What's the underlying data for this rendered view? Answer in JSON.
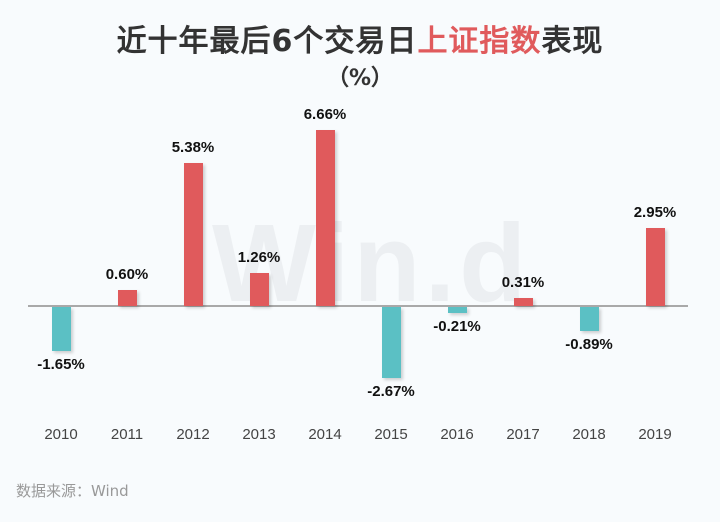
{
  "title": {
    "part1": "近十年最后6个交易日",
    "highlight": "上证指数",
    "part2": "表现",
    "highlight_color": "#E05A5C"
  },
  "subtitle": "（%）",
  "watermark": "Win.d",
  "source": "数据来源：Wind",
  "colors": {
    "positive": "#E05A5C",
    "negative": "#5BC0C4",
    "baseline": "#A9A9A9",
    "background": "#F8FBFD"
  },
  "chart_data": {
    "type": "bar",
    "title": "近十年最后6个交易日上证指数表现（%）",
    "xlabel": "",
    "ylabel": "%",
    "categories": [
      "2010",
      "2011",
      "2012",
      "2013",
      "2014",
      "2015",
      "2016",
      "2017",
      "2018",
      "2019"
    ],
    "values": [
      -1.65,
      0.6,
      5.38,
      1.26,
      6.66,
      -2.67,
      -0.21,
      0.31,
      -0.89,
      2.95
    ],
    "labels": [
      "-1.65%",
      "0.60%",
      "5.38%",
      "1.26%",
      "6.66%",
      "-2.67%",
      "-0.21%",
      "0.31%",
      "-0.89%",
      "2.95%"
    ],
    "ylim": [
      -3,
      7
    ],
    "grid": false,
    "legend": null,
    "colors_by_sign": {
      "positive": "#E05A5C",
      "negative": "#5BC0C4"
    }
  }
}
